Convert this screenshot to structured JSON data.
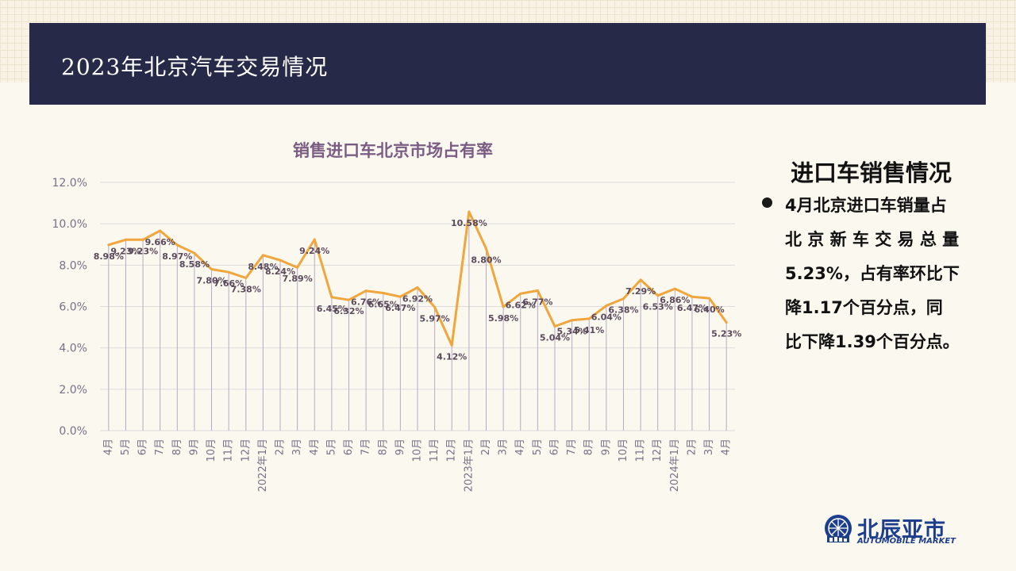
{
  "header": {
    "title": "2023年北京汽车交易情况"
  },
  "side_panel": {
    "title": "进口车销售情况",
    "bullet_lines": [
      "4月北京进口车销量占",
      "北 京 新 车 交 易 总 量",
      "5.23%，占有率环比下",
      "降1.17个百分点，同",
      "比下降1.39个百分点。"
    ]
  },
  "logo": {
    "name": "北辰亚市",
    "subtitle": "AUTOMOBILE MARKET",
    "icon": "ferris-wheel-icon"
  },
  "chart_data": {
    "type": "line",
    "title": "销售进口车北京市场占有率",
    "categories": [
      "4月",
      "5月",
      "6月",
      "7月",
      "8月",
      "9月",
      "10月",
      "11月",
      "12月",
      "2022年1月",
      "2月",
      "3月",
      "4月",
      "5月",
      "6月",
      "7月",
      "8月",
      "9月",
      "10月",
      "11月",
      "12月",
      "2023年1月",
      "2月",
      "3月",
      "4月",
      "5月",
      "6月",
      "7月",
      "8月",
      "9月",
      "10月",
      "11月",
      "12月",
      "2024年1月",
      "2月",
      "3月",
      "4月"
    ],
    "values": [
      8.98,
      9.23,
      9.23,
      9.66,
      8.97,
      8.58,
      7.8,
      7.66,
      7.38,
      8.48,
      8.24,
      7.89,
      9.24,
      6.45,
      6.32,
      6.76,
      6.65,
      6.47,
      6.92,
      5.97,
      4.12,
      10.58,
      8.8,
      5.98,
      6.62,
      6.77,
      5.04,
      5.34,
      5.41,
      6.04,
      6.38,
      7.29,
      6.53,
      6.86,
      6.47,
      6.4,
      5.23
    ],
    "data_labels": [
      "8.98%",
      "9.23%",
      "9.23%",
      "9.66%",
      "8.97%",
      "8.58%",
      "7.80%",
      "7.66%",
      "7.38%",
      "8.48%",
      "8.24%",
      "7.89%",
      "9.24%",
      "6.45%",
      "6.32%",
      "6.76%",
      "6.65%",
      "6.47%",
      "6.92%",
      "5.97%",
      "4.12%",
      "10.58%",
      "8.80%",
      "5.98%",
      "6.62%",
      "6.77%",
      "5.04%",
      "5.34%",
      "5.41%",
      "6.04%",
      "6.38%",
      "7.29%",
      "6.53%",
      "6.86%",
      "6.47%",
      "6.40%",
      "5.23%"
    ],
    "ylim": [
      0,
      12
    ],
    "yticks": [
      "0.0%",
      "2.0%",
      "4.0%",
      "6.0%",
      "8.0%",
      "10.0%",
      "12.0%"
    ],
    "grid": true,
    "colors": {
      "line": "#f0a63c",
      "drop": "#b8a9c4",
      "title": "#7b5d84",
      "label": "#5a4a5a",
      "axis_text": "#7a6f85"
    }
  }
}
